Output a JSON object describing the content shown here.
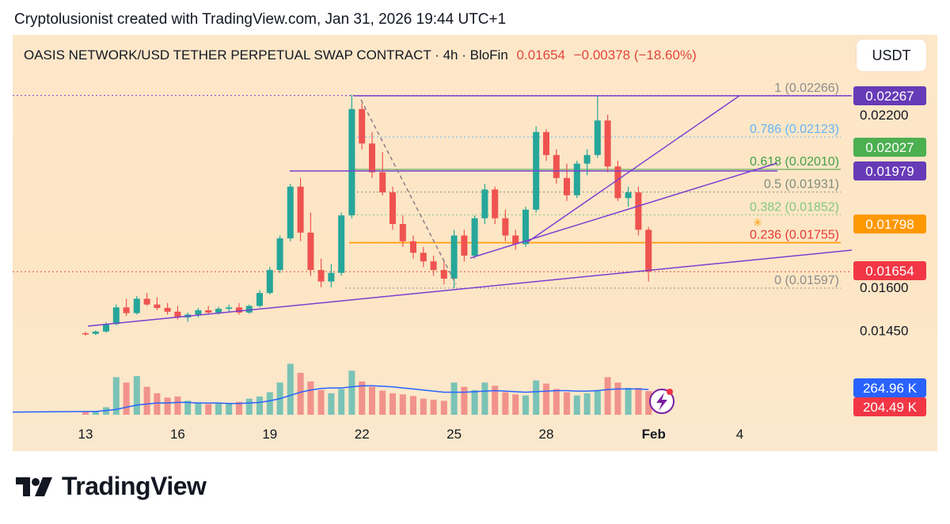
{
  "caption": "Cryptolusionist created with TradingView.com, Jan 31, 2026 19:44 UTC+1",
  "header": {
    "symbol": "OASIS NETWORK/USD TETHER PERPETUAL SWAP CONTRACT · 4h · BloFin",
    "last": "0.01654",
    "change": "−0.00378 (−18.60%)",
    "currency": "USDT"
  },
  "brand": "TradingView",
  "colors": {
    "up": "#26a69a",
    "down": "#ef5350",
    "line": "#7b3fd1",
    "ma": "#2962ff",
    "fibOrange": "#ff9800",
    "fibGreen": "#4caf50",
    "lastBadge": "#f23645"
  },
  "chart_data": {
    "type": "candlestick",
    "timeframe": "4h",
    "x_ticks": [
      "13",
      "16",
      "19",
      "22",
      "25",
      "28",
      "Feb",
      "4"
    ],
    "y_ticks": [
      "0.02200",
      "0.01600",
      "0.01450"
    ],
    "price_badges": [
      {
        "label": "0.02267",
        "value": 0.02267,
        "color": "#673ab7"
      },
      {
        "label": "0.02027",
        "value": 0.02027,
        "color": "#4caf50"
      },
      {
        "label": "0.01979",
        "value": 0.01979,
        "color": "#673ab7"
      },
      {
        "label": "0.01798",
        "value": 0.01798,
        "color": "#ff9800"
      },
      {
        "label": "0.01654",
        "value": 0.01654,
        "color": "#f23645"
      }
    ],
    "volume_badges": [
      {
        "label": "264.96 K",
        "color": "#2962ff"
      },
      {
        "label": "204.49 K",
        "color": "#f23645"
      }
    ],
    "fib_levels": [
      {
        "ratio": "1",
        "label": "1 (0.02266)",
        "value": 0.02266,
        "color": "#8c8c8c"
      },
      {
        "ratio": "0.786",
        "label": "0.786 (0.02123)",
        "value": 0.02123,
        "color": "#64b5f6"
      },
      {
        "ratio": "0.618",
        "label": "0.618 (0.02010)",
        "value": 0.0201,
        "color": "#43a047"
      },
      {
        "ratio": "0.5",
        "label": "0.5 (0.01931)",
        "value": 0.01931,
        "color": "#7e8c7e"
      },
      {
        "ratio": "0.382",
        "label": "0.382 (0.01852)",
        "value": 0.01852,
        "color": "#81c784"
      },
      {
        "ratio": "0.236",
        "label": "0.236 (0.01755)",
        "value": 0.01755,
        "color": "#e53935"
      },
      {
        "ratio": "0",
        "label": "0 (0.01597)",
        "value": 0.01597,
        "color": "#8c8c8c"
      }
    ],
    "candles": [
      [
        13.0,
        0.0144,
        0.01445,
        0.01432,
        0.01438
      ],
      [
        13.33,
        0.01438,
        0.0145,
        0.01434,
        0.01446
      ],
      [
        13.67,
        0.01446,
        0.01478,
        0.01442,
        0.01472
      ],
      [
        14.0,
        0.01472,
        0.0154,
        0.01468,
        0.0153
      ],
      [
        14.33,
        0.0153,
        0.0156,
        0.015,
        0.0151
      ],
      [
        14.67,
        0.0151,
        0.0157,
        0.01505,
        0.0156
      ],
      [
        15.0,
        0.0156,
        0.0158,
        0.01535,
        0.0154
      ],
      [
        15.33,
        0.0154,
        0.01565,
        0.0152,
        0.01528
      ],
      [
        15.67,
        0.01528,
        0.01545,
        0.01505,
        0.01515
      ],
      [
        16.0,
        0.01515,
        0.01535,
        0.01488,
        0.01495
      ],
      [
        16.33,
        0.01495,
        0.01512,
        0.0148,
        0.01505
      ],
      [
        16.67,
        0.01505,
        0.01528,
        0.01495,
        0.0152
      ],
      [
        17.0,
        0.0152,
        0.01535,
        0.01508,
        0.01512
      ],
      [
        17.33,
        0.01512,
        0.01532,
        0.01505,
        0.01525
      ],
      [
        17.67,
        0.01525,
        0.0154,
        0.01515,
        0.0153
      ],
      [
        18.0,
        0.0153,
        0.01545,
        0.01505,
        0.01512
      ],
      [
        18.33,
        0.01512,
        0.0154,
        0.01508,
        0.01535
      ],
      [
        18.67,
        0.01535,
        0.0159,
        0.0153,
        0.0158
      ],
      [
        19.0,
        0.0158,
        0.0167,
        0.01575,
        0.0166
      ],
      [
        19.33,
        0.0166,
        0.0178,
        0.0165,
        0.0177
      ],
      [
        19.67,
        0.0177,
        0.0196,
        0.0176,
        0.0195
      ],
      [
        20.0,
        0.0195,
        0.0198,
        0.0176,
        0.0179
      ],
      [
        20.33,
        0.0179,
        0.0186,
        0.0164,
        0.0166
      ],
      [
        20.67,
        0.0166,
        0.017,
        0.016,
        0.0162
      ],
      [
        21.0,
        0.0162,
        0.0168,
        0.016,
        0.0165
      ],
      [
        21.33,
        0.0165,
        0.0186,
        0.0164,
        0.0185
      ],
      [
        21.67,
        0.0185,
        0.0227,
        0.0184,
        0.0222
      ],
      [
        22.0,
        0.0222,
        0.0224,
        0.0208,
        0.021
      ],
      [
        22.33,
        0.021,
        0.0214,
        0.0198,
        0.02
      ],
      [
        22.67,
        0.02,
        0.0207,
        0.0192,
        0.0193
      ],
      [
        23.0,
        0.0193,
        0.0195,
        0.018,
        0.0182
      ],
      [
        23.33,
        0.0182,
        0.0185,
        0.0174,
        0.0176
      ],
      [
        23.67,
        0.0176,
        0.0178,
        0.017,
        0.0172
      ],
      [
        24.0,
        0.0172,
        0.0174,
        0.0167,
        0.0169
      ],
      [
        24.33,
        0.0169,
        0.0171,
        0.0164,
        0.0166
      ],
      [
        24.67,
        0.0166,
        0.0169,
        0.0161,
        0.0163
      ],
      [
        25.0,
        0.0163,
        0.018,
        0.01597,
        0.0178
      ],
      [
        25.33,
        0.0178,
        0.018,
        0.0169,
        0.0171
      ],
      [
        25.67,
        0.0171,
        0.0185,
        0.017,
        0.0184
      ],
      [
        26.0,
        0.0184,
        0.0196,
        0.0182,
        0.0194
      ],
      [
        26.33,
        0.0194,
        0.0195,
        0.0182,
        0.0184
      ],
      [
        26.67,
        0.0184,
        0.0187,
        0.0176,
        0.0178
      ],
      [
        27.0,
        0.0178,
        0.018,
        0.0173,
        0.0175
      ],
      [
        27.33,
        0.0175,
        0.0188,
        0.0174,
        0.0187
      ],
      [
        27.67,
        0.0187,
        0.0216,
        0.0186,
        0.0214
      ],
      [
        28.0,
        0.0214,
        0.0215,
        0.0204,
        0.0206
      ],
      [
        28.33,
        0.0206,
        0.0208,
        0.0196,
        0.0198
      ],
      [
        28.67,
        0.0198,
        0.0203,
        0.019,
        0.0192
      ],
      [
        29.0,
        0.0192,
        0.0204,
        0.0191,
        0.0203
      ],
      [
        29.33,
        0.0203,
        0.0208,
        0.0199,
        0.0206
      ],
      [
        29.67,
        0.0206,
        0.02267,
        0.0205,
        0.0218
      ],
      [
        30.0,
        0.0218,
        0.022,
        0.02,
        0.0202
      ],
      [
        30.33,
        0.0202,
        0.0204,
        0.019,
        0.0191
      ],
      [
        30.67,
        0.0191,
        0.0195,
        0.0188,
        0.0193
      ],
      [
        31.0,
        0.0193,
        0.0195,
        0.0178,
        0.018
      ],
      [
        31.33,
        0.018,
        0.0181,
        0.0162,
        0.01654
      ]
    ],
    "volume_max": 140,
    "volume": [
      5,
      6,
      14,
      70,
      60,
      72,
      52,
      40,
      32,
      34,
      26,
      22,
      20,
      22,
      20,
      24,
      30,
      34,
      42,
      60,
      95,
      78,
      62,
      46,
      40,
      48,
      82,
      62,
      52,
      45,
      40,
      38,
      35,
      30,
      28,
      26,
      60,
      52,
      46,
      60,
      54,
      42,
      38,
      36,
      64,
      58,
      48,
      42,
      36,
      40,
      46,
      70,
      60,
      50,
      50,
      44
    ],
    "ma": [
      6,
      6,
      8,
      10,
      14,
      18,
      20,
      22,
      22,
      23,
      23,
      22,
      22,
      22,
      21,
      21,
      22,
      23,
      26,
      30,
      36,
      42,
      46,
      49,
      50,
      50,
      52,
      54,
      54,
      53,
      52,
      50,
      48,
      46,
      44,
      42,
      42,
      42,
      43,
      44,
      45,
      44,
      43,
      42,
      43,
      44,
      45,
      45,
      44,
      44,
      45,
      47,
      48,
      48,
      48,
      47
    ]
  }
}
